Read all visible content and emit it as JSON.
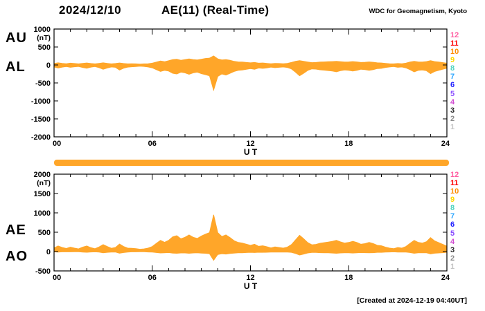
{
  "header": {
    "date": "2024/12/10",
    "title": "AE(11) (Real-Time)",
    "credit": "WDC for Geomagnetism, Kyoto"
  },
  "footer": {
    "created": "[Created at 2024-12-19 04:40UT]"
  },
  "colors": {
    "band": "#FFA629",
    "frame": "#000000",
    "background": "#FFFFFF",
    "text": "#000000"
  },
  "stations": {
    "count_scale": [
      12,
      11,
      10,
      9,
      8,
      7,
      6,
      5,
      4,
      3,
      2,
      1
    ],
    "colors": [
      "#FF5FA2",
      "#FF0000",
      "#FF8C00",
      "#FFD700",
      "#4DD2C0",
      "#2FA7FF",
      "#1F1FFF",
      "#8A4DFF",
      "#D24DD2",
      "#2B2B2B",
      "#8C8C8C",
      "#C4C4C4"
    ]
  },
  "chart_data": [
    {
      "type": "area",
      "panel": "AU-AL",
      "sample_interval_minutes": 15,
      "x": {
        "label": "U T",
        "start_hour": 0,
        "end_hour": 24,
        "major_tick_hours": [
          0,
          6,
          12,
          18,
          24
        ],
        "tick_labels": [
          "00",
          "06",
          "12",
          "18",
          "24"
        ],
        "minor_tick_step_hours": 1
      },
      "y": {
        "unit": "(nT)",
        "min": -2000,
        "max": 1000,
        "ticks": [
          1000,
          500,
          0,
          -500,
          -1000,
          -1500,
          -2000
        ]
      },
      "fill": "band-between-series",
      "series": [
        {
          "name": "AU",
          "values": [
            40,
            60,
            45,
            35,
            50,
            40,
            30,
            45,
            55,
            40,
            30,
            45,
            60,
            45,
            30,
            40,
            55,
            40,
            30,
            35,
            30,
            25,
            30,
            35,
            50,
            80,
            110,
            90,
            120,
            150,
            160,
            130,
            150,
            170,
            150,
            140,
            160,
            180,
            190,
            250,
            170,
            140,
            150,
            130,
            100,
            85,
            80,
            70,
            60,
            70,
            50,
            55,
            45,
            35,
            45,
            40,
            35,
            45,
            70,
            100,
            120,
            100,
            80,
            65,
            70,
            80,
            85,
            90,
            95,
            100,
            90,
            80,
            85,
            95,
            85,
            70,
            75,
            85,
            75,
            60,
            55,
            45,
            35,
            30,
            40,
            35,
            50,
            80,
            100,
            85,
            80,
            95,
            120,
            95,
            80,
            65,
            50
          ]
        },
        {
          "name": "AL",
          "values": [
            -55,
            -85,
            -60,
            -45,
            -65,
            -50,
            -40,
            -70,
            -90,
            -60,
            -45,
            -75,
            -120,
            -85,
            -55,
            -65,
            -140,
            -90,
            -60,
            -50,
            -45,
            -35,
            -40,
            -55,
            -80,
            -130,
            -180,
            -150,
            -170,
            -230,
            -250,
            -200,
            -220,
            -260,
            -220,
            -200,
            -240,
            -270,
            -300,
            -700,
            -320,
            -250,
            -280,
            -230,
            -180,
            -150,
            -140,
            -120,
            -100,
            -120,
            -85,
            -95,
            -80,
            -60,
            -75,
            -65,
            -55,
            -70,
            -110,
            -200,
            -300,
            -230,
            -150,
            -110,
            -115,
            -135,
            -145,
            -155,
            -170,
            -190,
            -160,
            -140,
            -150,
            -170,
            -150,
            -120,
            -130,
            -150,
            -130,
            -100,
            -95,
            -70,
            -55,
            -45,
            -65,
            -55,
            -80,
            -130,
            -190,
            -150,
            -140,
            -160,
            -240,
            -180,
            -150,
            -120,
            -90
          ]
        }
      ]
    },
    {
      "type": "area",
      "panel": "AE-AO",
      "sample_interval_minutes": 15,
      "x": {
        "label": "U T",
        "start_hour": 0,
        "end_hour": 24,
        "major_tick_hours": [
          0,
          6,
          12,
          18,
          24
        ],
        "tick_labels": [
          "00",
          "06",
          "12",
          "18",
          "24"
        ],
        "minor_tick_step_hours": 1
      },
      "y": {
        "unit": "(nT)",
        "min": -500,
        "max": 2000,
        "ticks": [
          2000,
          1500,
          1000,
          500,
          0,
          -500
        ]
      },
      "fill": "band-between-series",
      "series": [
        {
          "name": "AE",
          "values": [
            95,
            145,
            105,
            80,
            115,
            90,
            70,
            115,
            145,
            100,
            75,
            120,
            180,
            130,
            85,
            105,
            195,
            130,
            90,
            85,
            75,
            60,
            70,
            90,
            130,
            210,
            290,
            240,
            290,
            380,
            410,
            330,
            370,
            430,
            370,
            340,
            400,
            450,
            490,
            950,
            490,
            390,
            430,
            360,
            280,
            235,
            220,
            190,
            160,
            190,
            135,
            150,
            125,
            95,
            120,
            105,
            90,
            115,
            180,
            300,
            420,
            330,
            230,
            175,
            185,
            215,
            230,
            245,
            265,
            290,
            250,
            220,
            235,
            265,
            235,
            190,
            205,
            235,
            205,
            160,
            150,
            115,
            90,
            75,
            105,
            90,
            130,
            210,
            290,
            235,
            220,
            255,
            360,
            275,
            230,
            185,
            140
          ]
        },
        {
          "name": "AO",
          "values": [
            -8,
            -13,
            -8,
            -5,
            -8,
            -5,
            -5,
            -13,
            -18,
            -10,
            -8,
            -15,
            -30,
            -20,
            -13,
            -13,
            -43,
            -25,
            -15,
            -8,
            -8,
            -5,
            -5,
            -10,
            -15,
            -25,
            -35,
            -30,
            -25,
            -40,
            -45,
            -35,
            -35,
            -45,
            -35,
            -30,
            -40,
            -45,
            -55,
            -225,
            -75,
            -55,
            -65,
            -50,
            -40,
            -33,
            -30,
            -25,
            -20,
            -25,
            -18,
            -20,
            -18,
            -13,
            -15,
            -13,
            -10,
            -13,
            -20,
            -50,
            -90,
            -65,
            -35,
            -23,
            -23,
            -28,
            -30,
            -33,
            -38,
            -45,
            -35,
            -30,
            -33,
            -38,
            -33,
            -25,
            -28,
            -33,
            -28,
            -20,
            -20,
            -13,
            -10,
            -8,
            -13,
            -10,
            -15,
            -25,
            -45,
            -33,
            -30,
            -33,
            -60,
            -43,
            -35,
            -28,
            -20
          ]
        }
      ]
    }
  ]
}
